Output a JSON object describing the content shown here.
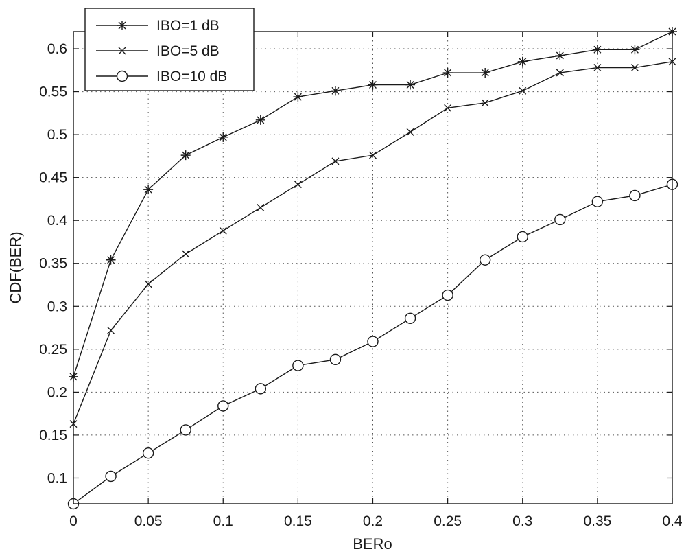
{
  "chart_data": {
    "type": "line",
    "title": "",
    "xlabel": "BERo",
    "ylabel": "CDF(BER)",
    "xlim": [
      0,
      0.4
    ],
    "ylim": [
      0.07,
      0.62
    ],
    "grid": true,
    "legend_position": "top-left",
    "x_ticks": [
      "0",
      "0.05",
      "0.1",
      "0.15",
      "0.2",
      "0.25",
      "0.3",
      "0.35",
      "0.4"
    ],
    "y_ticks": [
      "0.1",
      "0.15",
      "0.2",
      "0.25",
      "0.3",
      "0.35",
      "0.4",
      "0.45",
      "0.5",
      "0.55",
      "0.6"
    ],
    "x": [
      0,
      0.025,
      0.05,
      0.075,
      0.1,
      0.125,
      0.15,
      0.175,
      0.2,
      0.225,
      0.25,
      0.275,
      0.3,
      0.325,
      0.35,
      0.375,
      0.4
    ],
    "series": [
      {
        "name": "IBO=1 dB",
        "marker": "asterisk",
        "color": "#1a1a1a",
        "values": [
          0.218,
          0.354,
          0.436,
          0.476,
          0.497,
          0.517,
          0.544,
          0.551,
          0.558,
          0.558,
          0.572,
          0.572,
          0.585,
          0.592,
          0.599,
          0.599,
          0.62
        ]
      },
      {
        "name": "IBO=5 dB",
        "marker": "x",
        "color": "#1a1a1a",
        "values": [
          0.163,
          0.272,
          0.326,
          0.361,
          0.388,
          0.415,
          0.442,
          0.469,
          0.476,
          0.503,
          0.531,
          0.537,
          0.551,
          0.572,
          0.578,
          0.578,
          0.585
        ]
      },
      {
        "name": "IBO=10 dB",
        "marker": "circle",
        "color": "#1a1a1a",
        "values": [
          0.07,
          0.102,
          0.129,
          0.156,
          0.184,
          0.204,
          0.231,
          0.238,
          0.259,
          0.286,
          0.313,
          0.354,
          0.381,
          0.401,
          0.422,
          0.429,
          0.442
        ]
      }
    ]
  }
}
